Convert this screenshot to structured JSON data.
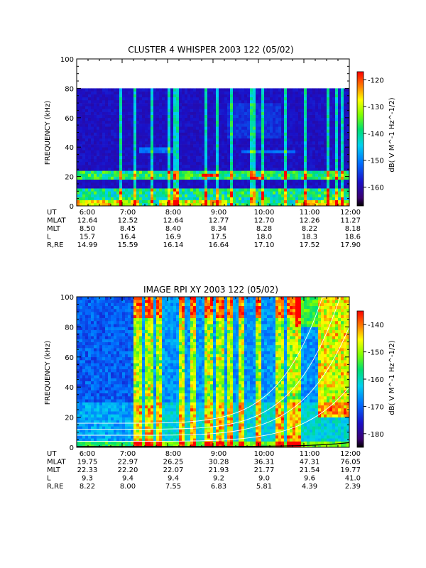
{
  "chart_data": [
    {
      "type": "heatmap",
      "title": "CLUSTER 4 WHISPER 2003 122 (05/02)",
      "ylabel": "FREQUENCY (kHz)",
      "ylim": [
        0,
        100
      ],
      "yticks": [
        "0",
        "20",
        "40",
        "60",
        "80",
        "100"
      ],
      "xticks": [
        "6:00",
        "7:00",
        "8:00",
        "9:00",
        "10:00",
        "11:00",
        "12:00"
      ],
      "data_ceiling_khz": 80,
      "colorbar": {
        "label": "dB( V M^-1 Hz^-1/2)",
        "ticks": [
          "-120",
          "-130",
          "-140",
          "-150",
          "-160"
        ],
        "range": [
          -167,
          -117
        ]
      },
      "ephemeris": {
        "labels": [
          "UT",
          "MLAT",
          "MLT",
          "L",
          "R,RE"
        ],
        "rows": [
          [
            "6:00",
            "7:00",
            "8:00",
            "9:00",
            "10:00",
            "11:00",
            "12:00"
          ],
          [
            "12.64",
            "12.52",
            "12.64",
            "12.77",
            "12.70",
            "12.26",
            "11.27"
          ],
          [
            "8.50",
            "8.45",
            "8.40",
            "8.34",
            "8.28",
            "8.22",
            "8.18"
          ],
          [
            "15.7",
            "16.4",
            "16.9",
            "17.5",
            "18.0",
            "18.3",
            "18.6"
          ],
          [
            "14.99",
            "15.59",
            "16.14",
            "16.64",
            "17.10",
            "17.52",
            "17.90"
          ]
        ]
      }
    },
    {
      "type": "heatmap",
      "title": "IMAGE RPI XY 2003 122 (05/02)",
      "ylabel": "FREQUENCY (kHz)",
      "ylim": [
        0,
        100
      ],
      "yticks": [
        "0",
        "20",
        "40",
        "60",
        "80",
        "100"
      ],
      "xticks": [
        "6:00",
        "7:00",
        "8:00",
        "9:00",
        "10:00",
        "11:00",
        "12:00"
      ],
      "colorbar": {
        "label": "dB( V M^-1 Hz^-1/2)",
        "ticks": [
          "-140",
          "-150",
          "-160",
          "-170",
          "-180"
        ],
        "range": [
          -185,
          -135
        ]
      },
      "ephemeris": {
        "labels": [
          "UT",
          "MLAT",
          "MLT",
          "L",
          "R,RE"
        ],
        "rows": [
          [
            "6:00",
            "7:00",
            "8:00",
            "9:00",
            "10:00",
            "11:00",
            "12:00"
          ],
          [
            "19.75",
            "22.97",
            "26.25",
            "30.28",
            "36.31",
            "47.31",
            "76.05"
          ],
          [
            "22.33",
            "22.20",
            "22.07",
            "21.93",
            "21.77",
            "21.54",
            "19.77"
          ],
          [
            "9.3",
            "9.4",
            "9.4",
            "9.2",
            "9.0",
            "9.6",
            "41.0"
          ],
          [
            "8.22",
            "8.00",
            "7.55",
            "6.83",
            "5.81",
            "4.39",
            "2.39"
          ]
        ]
      }
    }
  ]
}
